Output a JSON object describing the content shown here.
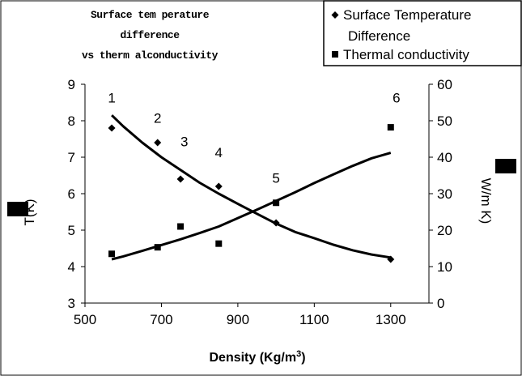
{
  "chart_data": {
    "type": "scatter",
    "title": [
      "Surface tem perature",
      "difference",
      "vs therm alconductivity"
    ],
    "xlabel": "Density (Kg/m",
    "xlabel_sup": "3",
    "xlabel_tail": ")",
    "ylabel_left": "T(K)",
    "ylabel_right": "W/m K)",
    "xlim": [
      500,
      1400
    ],
    "ylim_left": [
      3,
      9
    ],
    "ylim_right": [
      0,
      60
    ],
    "x_ticks": [
      "500",
      "700",
      "900",
      "1100",
      "1300"
    ],
    "y_left_ticks": [
      "3",
      "4",
      "5",
      "6",
      "7",
      "8",
      "9"
    ],
    "y_right_ticks": [
      "0",
      "10",
      "20",
      "30",
      "40",
      "50",
      "60"
    ],
    "legend_position": "top-right",
    "series": [
      {
        "name": "Surface Temperature Difference",
        "marker": "diamond",
        "axis": "left",
        "x": [
          570,
          690,
          750,
          850,
          1000,
          1300
        ],
        "y": [
          7.8,
          7.4,
          6.4,
          6.2,
          5.2,
          4.2
        ]
      },
      {
        "name": "Thermal conductivity",
        "marker": "square",
        "axis": "right",
        "x": [
          570,
          690,
          750,
          850,
          1000,
          1300
        ],
        "y": [
          13.5,
          15.3,
          21,
          16.3,
          27.5,
          48.2
        ]
      }
    ],
    "trendlines": [
      {
        "axis": "left",
        "x": [
          570,
          600,
          650,
          700,
          750,
          800,
          850,
          900,
          950,
          1000,
          1050,
          1100,
          1150,
          1200,
          1250,
          1300
        ],
        "y": [
          8.15,
          7.85,
          7.4,
          7.0,
          6.65,
          6.3,
          6.0,
          5.72,
          5.45,
          5.18,
          4.95,
          4.78,
          4.6,
          4.45,
          4.33,
          4.25
        ]
      },
      {
        "axis": "right",
        "x": [
          570,
          600,
          650,
          700,
          750,
          800,
          850,
          900,
          950,
          1000,
          1050,
          1100,
          1150,
          1200,
          1250,
          1300
        ],
        "y": [
          12,
          12.8,
          14.3,
          15.9,
          17.5,
          19.2,
          21.0,
          23.3,
          25.6,
          28.0,
          30.4,
          32.9,
          35.3,
          37.6,
          39.7,
          41.2
        ]
      }
    ],
    "point_labels": [
      {
        "text": "1",
        "x": 570,
        "y": 8.5
      },
      {
        "text": "2",
        "x": 690,
        "y": 7.95
      },
      {
        "text": "3",
        "x": 760,
        "y": 7.3
      },
      {
        "text": "4",
        "x": 850,
        "y": 7.0
      },
      {
        "text": "5",
        "x": 1000,
        "y": 6.3
      },
      {
        "text": "6",
        "x": 1315,
        "y": 8.5
      }
    ],
    "legend": [
      {
        "label_lines": [
          "Surface Temperature",
          "Difference"
        ],
        "marker": "diamond"
      },
      {
        "label_lines": [
          "Thermal conductivity"
        ],
        "marker": "square"
      }
    ]
  }
}
